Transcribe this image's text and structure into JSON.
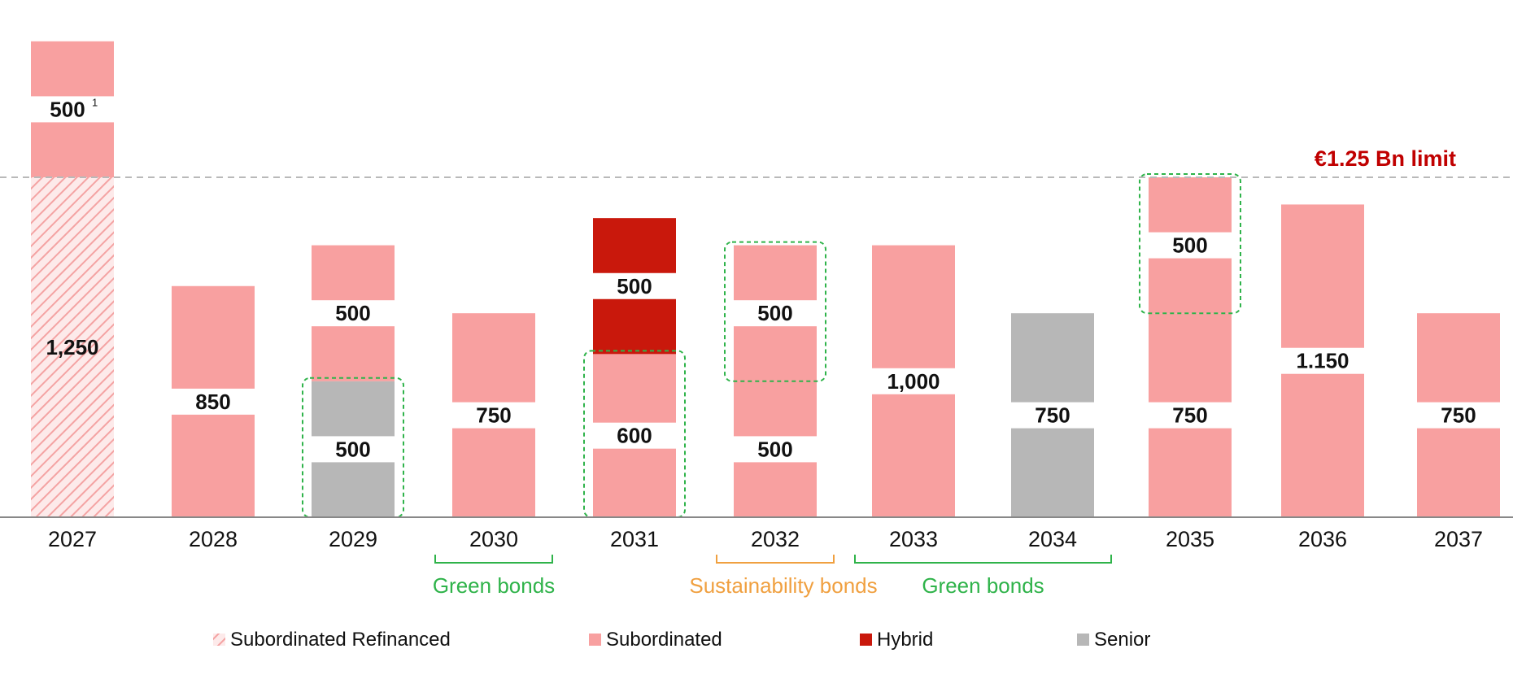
{
  "chart_data": {
    "type": "bar",
    "stacked": true,
    "unit": "€ M",
    "categories": [
      "2027",
      "2028",
      "2029",
      "2030",
      "2031",
      "2032",
      "2033",
      "2034",
      "2035",
      "2036",
      "2037"
    ],
    "limit": {
      "value": 1250,
      "label": "€1.25 Bn limit",
      "color": "#c00000"
    },
    "legend": [
      {
        "key": "subordinated_refinanced",
        "label": "Subordinated Refinanced",
        "color": "#f4a3a3",
        "pattern": "hatched"
      },
      {
        "key": "subordinated",
        "label": "Subordinated",
        "color": "#f8a0a0"
      },
      {
        "key": "hybrid",
        "label": "Hybrid",
        "color": "#c9180c"
      },
      {
        "key": "senior",
        "label": "Senior",
        "color": "#b7b7b7"
      }
    ],
    "legend_position": "bottom",
    "stacks": [
      {
        "year": "2027",
        "segments": [
          {
            "type": "subordinated_refinanced",
            "value": 1250,
            "label": "1,250"
          },
          {
            "type": "subordinated",
            "value": 500,
            "label": "500",
            "footnote": "1"
          }
        ]
      },
      {
        "year": "2028",
        "segments": [
          {
            "type": "subordinated",
            "value": 850,
            "label": "850"
          }
        ]
      },
      {
        "year": "2029",
        "segments": [
          {
            "type": "senior",
            "value": 500,
            "label": "500"
          },
          {
            "type": "subordinated",
            "value": 500,
            "label": "500"
          }
        ]
      },
      {
        "year": "2030",
        "segments": [
          {
            "type": "subordinated",
            "value": 750,
            "label": "750"
          }
        ]
      },
      {
        "year": "2031",
        "segments": [
          {
            "type": "subordinated",
            "value": 600,
            "label": "600"
          },
          {
            "type": "hybrid",
            "value": 500,
            "label": "500"
          }
        ]
      },
      {
        "year": "2032",
        "segments": [
          {
            "type": "subordinated",
            "value": 500,
            "label": "500"
          },
          {
            "type": "subordinated",
            "value": 500,
            "label": "500"
          }
        ]
      },
      {
        "year": "2033",
        "segments": [
          {
            "type": "subordinated",
            "value": 1000,
            "label": "1,000"
          }
        ]
      },
      {
        "year": "2034",
        "segments": [
          {
            "type": "senior",
            "value": 750,
            "label": "750"
          }
        ]
      },
      {
        "year": "2035",
        "segments": [
          {
            "type": "subordinated",
            "value": 750,
            "label": "750"
          },
          {
            "type": "subordinated",
            "value": 500,
            "label": "500"
          }
        ]
      },
      {
        "year": "2036",
        "segments": [
          {
            "type": "subordinated",
            "value": 1150,
            "label": "1.150"
          }
        ]
      },
      {
        "year": "2037",
        "segments": [
          {
            "type": "subordinated",
            "value": 750,
            "label": "750"
          }
        ]
      }
    ],
    "highlights": [
      {
        "year": "2029",
        "segment": 0,
        "color": "#2fb34a"
      },
      {
        "year": "2031",
        "segment": 0,
        "color": "#2fb34a"
      },
      {
        "year": "2032",
        "segment": 1,
        "color": "#2fb34a"
      },
      {
        "year": "2035",
        "segment": 1,
        "color": "#2fb34a"
      }
    ],
    "groups": [
      {
        "label": "Green bonds",
        "from": "2030",
        "to": "2030",
        "color": "#2fb34a"
      },
      {
        "label": "Sustainability bonds",
        "from": "2032",
        "to": "2032",
        "color": "#f0a040"
      },
      {
        "label": "Green bonds",
        "from": "2033",
        "to": "2034",
        "color": "#2fb34a"
      }
    ]
  }
}
